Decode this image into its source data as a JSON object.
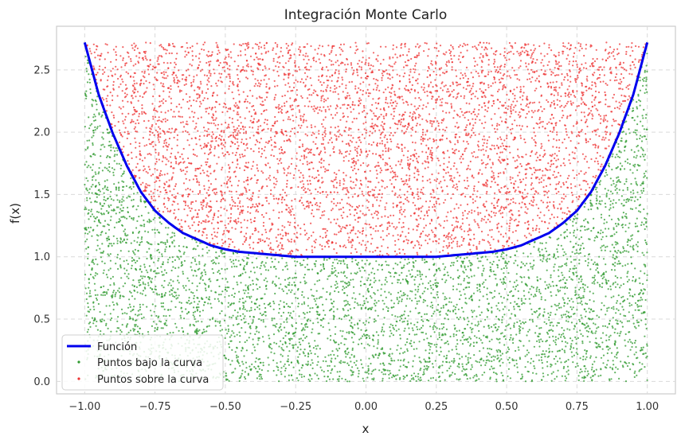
{
  "chart_data": {
    "type": "scatter",
    "title": "Integración Monte Carlo",
    "xlabel": "x",
    "ylabel": "f(x)",
    "xlim": [
      -1.1,
      1.1
    ],
    "ylim": [
      -0.1,
      2.85
    ],
    "x_ticks": [
      -1.0,
      -0.75,
      -0.5,
      -0.25,
      0.0,
      0.25,
      0.5,
      0.75,
      1.0
    ],
    "x_tick_labels": [
      "−1.00",
      "−0.75",
      "−0.50",
      "−0.25",
      "0.00",
      "0.25",
      "0.50",
      "0.75",
      "1.00"
    ],
    "y_ticks": [
      0.0,
      0.5,
      1.0,
      1.5,
      2.0,
      2.5
    ],
    "y_tick_labels": [
      "0.0",
      "0.5",
      "1.0",
      "1.5",
      "2.0",
      "2.5"
    ],
    "grid": true,
    "legend_position": "lower-left",
    "sampling_region": {
      "x": [
        -1.0,
        1.0
      ],
      "y": [
        0.0,
        2.72
      ]
    },
    "series": [
      {
        "name": "Función",
        "kind": "line",
        "color": "#0000ee",
        "x": [
          -1.0,
          -0.95,
          -0.9,
          -0.85,
          -0.8,
          -0.75,
          -0.7,
          -0.65,
          -0.6,
          -0.55,
          -0.5,
          -0.45,
          -0.4,
          -0.35,
          -0.3,
          -0.25,
          -0.2,
          -0.15,
          -0.1,
          -0.05,
          0.0,
          0.05,
          0.1,
          0.15,
          0.2,
          0.25,
          0.3,
          0.35,
          0.4,
          0.45,
          0.5,
          0.55,
          0.6,
          0.65,
          0.7,
          0.75,
          0.8,
          0.85,
          0.9,
          0.95,
          1.0
        ],
        "y": [
          2.72,
          2.3,
          1.99,
          1.73,
          1.52,
          1.37,
          1.27,
          1.19,
          1.14,
          1.09,
          1.06,
          1.04,
          1.03,
          1.02,
          1.01,
          1.0,
          1.0,
          1.0,
          1.0,
          1.0,
          1.0,
          1.0,
          1.0,
          1.0,
          1.0,
          1.0,
          1.01,
          1.02,
          1.03,
          1.04,
          1.06,
          1.09,
          1.14,
          1.19,
          1.27,
          1.37,
          1.52,
          1.73,
          1.99,
          2.3,
          2.72
        ]
      },
      {
        "name": "Puntos bajo la curva",
        "kind": "scatter",
        "color": "#2e9a2e",
        "count": 4300
      },
      {
        "name": "Puntos sobre la curva",
        "kind": "scatter",
        "color": "#ee3333",
        "count": 5700
      }
    ]
  }
}
